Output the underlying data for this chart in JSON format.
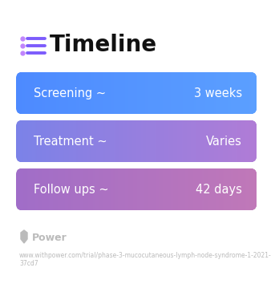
{
  "title": "Timeline",
  "title_fontsize": 20,
  "title_color": "#111111",
  "title_bold": true,
  "icon_color": "#7c5cfc",
  "icon_dot_color": "#c084fc",
  "bg_color": "#ffffff",
  "rows": [
    {
      "label": "Screening ~",
      "value": "3 weeks",
      "color_left": "#4d8aff",
      "color_right": "#5b9fff"
    },
    {
      "label": "Treatment ~",
      "value": "Varies",
      "color_left": "#7b82e8",
      "color_right": "#b07cd6"
    },
    {
      "label": "Follow ups ~",
      "value": "42 days",
      "color_left": "#a06dc8",
      "color_right": "#c078b8"
    }
  ],
  "row_text_color": "#ffffff",
  "row_label_fontsize": 10.5,
  "row_value_fontsize": 10.5,
  "footer_logo_text": "Power",
  "footer_logo_color": "#bbbbbb",
  "footer_url_line1": "www.withpower.com/trial/phase-3-mucocutaneous-lymph-node-syndrome-1-2021-",
  "footer_url_line2": "37cd7",
  "footer_fontsize": 5.5
}
